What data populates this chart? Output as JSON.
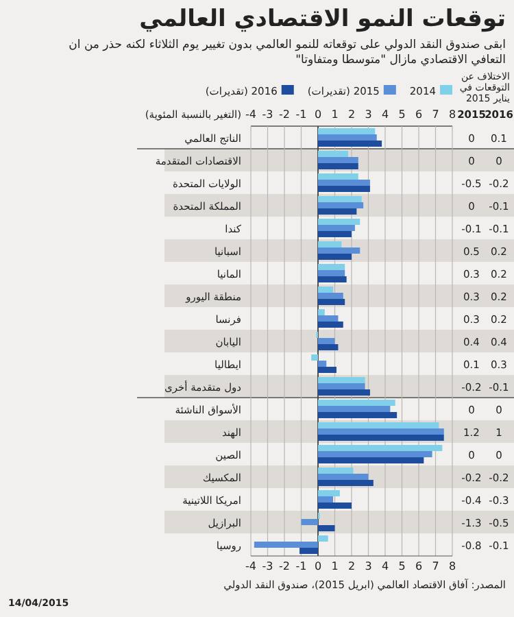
{
  "chart_data": [
    {
      "type": "bar",
      "orientation": "horizontal",
      "title": "توقعات النمو الاقتصادي العالمي",
      "subtitle": "ابقى صندوق النقد الدولي على توقعاته للنمو العالمي بدون تغيير يوم الثلاثاء لكنه حذر من ان التعافي الاقتصادي مازال \"متوسطا ومتفاوتا\"",
      "xlabel": "(التغير بالنسبة المئوية)",
      "categories": [
        "الناتج العالمي",
        "الاقتصادات المتقدمة",
        "الولايات المتحدة",
        "المملكة المتحدة",
        "كندا",
        "اسبانيا",
        "المانيا",
        "منطقة اليورو",
        "فرنسا",
        "اليابان",
        "ايطاليا",
        "دول متقدمة أخرى",
        "الأسواق الناشئة",
        "الهند",
        "الصين",
        "المكسيك",
        "امريكا اللاتينية",
        "البرازيل",
        "روسيا"
      ],
      "series": [
        {
          "name": "2014",
          "color": "#7fd0e8",
          "values": [
            3.4,
            1.8,
            2.4,
            2.6,
            2.5,
            1.4,
            1.6,
            0.9,
            0.4,
            -0.1,
            -0.4,
            2.8,
            4.6,
            7.2,
            7.4,
            2.1,
            1.3,
            0.1,
            0.6
          ]
        },
        {
          "name": "2015 (تقديرات)",
          "color": "#5a8fd8",
          "values": [
            3.5,
            2.4,
            3.1,
            2.7,
            2.2,
            2.5,
            1.6,
            1.5,
            1.2,
            1.0,
            0.5,
            2.8,
            4.3,
            7.5,
            6.8,
            3.0,
            0.9,
            -1.0,
            -3.8
          ]
        },
        {
          "name": "2016 (تقديرات)",
          "color": "#1f4d9e",
          "values": [
            3.8,
            2.4,
            3.1,
            2.3,
            2.0,
            2.0,
            1.7,
            1.6,
            1.5,
            1.2,
            1.1,
            3.1,
            4.7,
            7.5,
            6.3,
            3.3,
            2.0,
            1.0,
            -1.1
          ]
        }
      ],
      "xlim": [
        -4,
        8
      ],
      "xticks": [
        -4,
        -3,
        -2,
        -1,
        0,
        1,
        2,
        3,
        4,
        5,
        6,
        7,
        8
      ],
      "x2lim": [
        -4,
        8
      ],
      "x2ticks": [
        -4,
        -3,
        -2,
        -1,
        0,
        1,
        2,
        3,
        4,
        5,
        6,
        7,
        8
      ],
      "grid": "x",
      "legend": "top",
      "annotations": [
        "المصدر: آفاق الاقتصاد العالمي (ابريل 2015)، صندوق النقد الدولي",
        "14/04/2015"
      ]
    },
    {
      "type": "other",
      "title": "الاختلاف عن التوقعات في يناير 2015",
      "annotations": [
        "2015",
        "2016",
        "0",
        "0.1",
        "0",
        "0",
        "-0.5",
        "-0.2",
        "0",
        "-0.1",
        "-0.1",
        "-0.1",
        "0.5",
        "0.2",
        "0.3",
        "0.2",
        "0.3",
        "0.2",
        "0.3",
        "0.2",
        "0.4",
        "0.4",
        "0.1",
        "0.3",
        "-0.2",
        "-0.1",
        "0",
        "0",
        "1.2",
        "1",
        "0",
        "0",
        "-0.2",
        "-0.2",
        "-0.4",
        "-0.3",
        "-1.3",
        "-0.5",
        "-0.8",
        "-0.1"
      ]
    }
  ]
}
